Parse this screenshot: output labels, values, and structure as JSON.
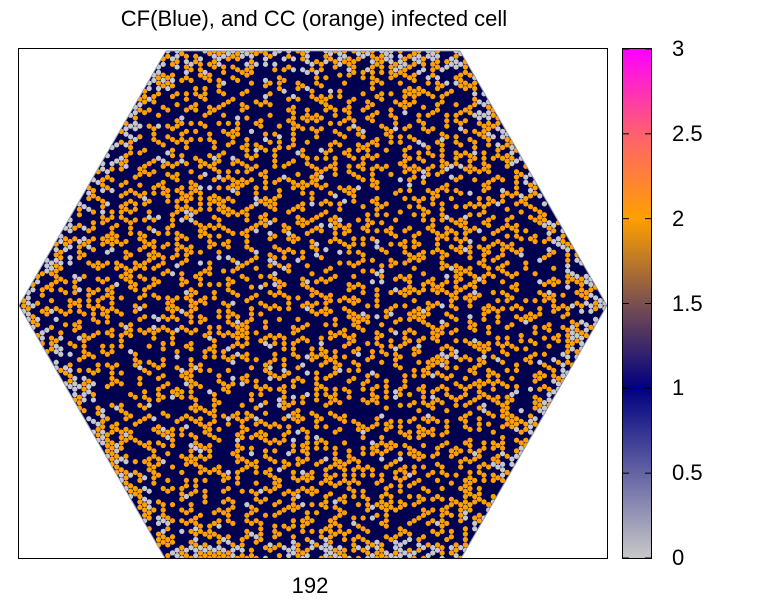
{
  "chart_data": {
    "type": "heatmap",
    "title": "CF(Blue), and CC (orange) infected cell",
    "xlabel": "",
    "ylabel": "",
    "x_tick_labels": [
      "192"
    ],
    "colorbar": {
      "range": [
        0,
        3
      ],
      "ticks": [
        0,
        0.5,
        1,
        1.5,
        2,
        2.5,
        3
      ],
      "tick_labels": [
        "0",
        "0.5",
        "1",
        "1.5",
        "2",
        "2.5",
        "3"
      ],
      "palette": [
        {
          "value": 0,
          "color": "#c8c8c8"
        },
        {
          "value": 1,
          "color": "#000080"
        },
        {
          "value": 1.5,
          "color": "#7a5050"
        },
        {
          "value": 2,
          "color": "#ffa000"
        },
        {
          "value": 2.5,
          "color": "#ff6070"
        },
        {
          "value": 3,
          "color": "#ff00ff"
        }
      ]
    },
    "lattice": {
      "shape": "hexagon",
      "cell_shape": "hexagon",
      "composition": [
        {
          "value": 1,
          "label": "CF",
          "fraction": 0.57
        },
        {
          "value": 2,
          "label": "CC",
          "fraction": 0.33
        },
        {
          "value": 0,
          "label": "",
          "fraction": 0.1
        }
      ]
    },
    "grid": false
  }
}
